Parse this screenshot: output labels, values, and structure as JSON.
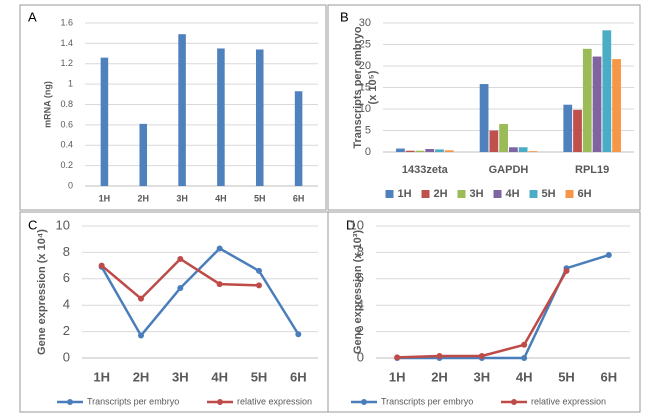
{
  "chart_data": [
    {
      "type": "bar",
      "panel": "A",
      "ylabel": [
        "mRNA (ng)"
      ],
      "categories": [
        "1H",
        "2H",
        "3H",
        "4H",
        "5H",
        "6H"
      ],
      "series": [
        {
          "color": "#4f81bd",
          "values": [
            1.26,
            0.61,
            1.49,
            1.35,
            1.34,
            0.93
          ]
        }
      ],
      "ylim": [
        0,
        1.6
      ],
      "yticks": [
        0,
        0.2,
        0.4,
        0.6,
        0.8,
        1,
        1.2,
        1.4,
        1.6
      ],
      "grid": true
    },
    {
      "type": "bar",
      "panel": "B",
      "ylabel": [
        "Transcripts per embryo",
        "(x 10⁵)"
      ],
      "categories": [
        "1433zeta",
        "GAPDH",
        "RPL19"
      ],
      "series": [
        {
          "name": "1H",
          "color": "#4f81bd",
          "values": [
            0.8,
            15.8,
            11
          ]
        },
        {
          "name": "2H",
          "color": "#c0504d",
          "values": [
            0.3,
            5,
            9.8
          ]
        },
        {
          "name": "3H",
          "color": "#9bbb59",
          "values": [
            0.3,
            6.5,
            24
          ]
        },
        {
          "name": "4H",
          "color": "#8064a2",
          "values": [
            0.7,
            1.1,
            22.2
          ]
        },
        {
          "name": "5H",
          "color": "#4bacc6",
          "values": [
            0.6,
            1.1,
            28.3
          ]
        },
        {
          "name": "6H",
          "color": "#f79646",
          "values": [
            0.4,
            0.2,
            21.6
          ]
        }
      ],
      "ylim": [
        0,
        30
      ],
      "yticks": [
        0,
        5,
        10,
        15,
        20,
        25,
        30
      ],
      "grid": true,
      "legend": "bottom"
    },
    {
      "type": "line",
      "panel": "C",
      "ylabel": [
        "Gene expression (x 10⁴)"
      ],
      "categories": [
        "1H",
        "2H",
        "3H",
        "4H",
        "5H",
        "6H"
      ],
      "series": [
        {
          "name": "Transcripts per embryo",
          "color": "#4a7ebb",
          "values": [
            6.9,
            1.7,
            5.3,
            8.3,
            6.6,
            1.8
          ]
        },
        {
          "name": "relative expression",
          "color": "#be4b48",
          "values": [
            7.0,
            4.5,
            7.5,
            5.6,
            5.5,
            null
          ]
        }
      ],
      "ylim": [
        0,
        10
      ],
      "yticks": [
        0,
        2,
        4,
        6,
        8,
        10
      ],
      "grid": true,
      "legend": "bottom"
    },
    {
      "type": "line",
      "panel": "D",
      "ylabel": [
        "Gene expression (x 10³)"
      ],
      "categories": [
        "1H",
        "2H",
        "3H",
        "4H",
        "5H",
        "6H"
      ],
      "series": [
        {
          "name": "Transcripts per embryo",
          "color": "#4a7ebb",
          "values": [
            0,
            0,
            0,
            0,
            6.8,
            7.8
          ]
        },
        {
          "name": "relative expression",
          "color": "#be4b48",
          "values": [
            0.05,
            0.15,
            0.15,
            1.0,
            6.6,
            null
          ]
        }
      ],
      "ylim": [
        0,
        10
      ],
      "yticks": [
        0,
        2,
        4,
        6,
        8,
        10
      ],
      "grid": true,
      "legend": "bottom"
    }
  ]
}
